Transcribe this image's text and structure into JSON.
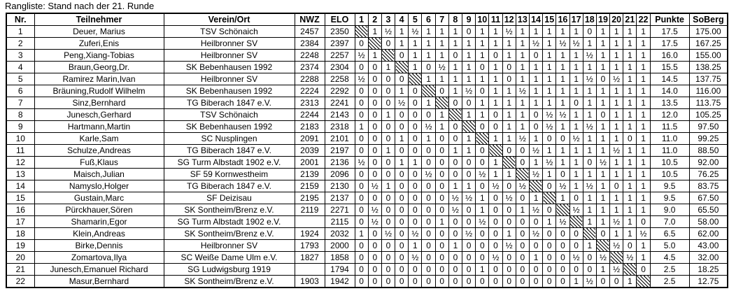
{
  "title": "Rangliste: Stand nach der 21. Runde",
  "table": {
    "headers": {
      "nr": "Nr.",
      "name": "Teilnehmer",
      "club": "Verein/Ort",
      "nwz": "NWZ",
      "elo": "ELO",
      "rounds": [
        "1",
        "2",
        "3",
        "4",
        "5",
        "6",
        "7",
        "8",
        "9",
        "10",
        "11",
        "12",
        "13",
        "14",
        "15",
        "16",
        "17",
        "18",
        "19",
        "20",
        "21",
        "22"
      ],
      "points": "Punkte",
      "soberg": "SoBerg"
    },
    "diagonal_marker": "X",
    "rows": [
      {
        "nr": "1",
        "name": "Deuer, Marius",
        "club": "TSV Schönaich",
        "nwz": "2457",
        "elo": "2350",
        "results": [
          "X",
          "1",
          "½",
          "1",
          "½",
          "1",
          "1",
          "1",
          "0",
          "1",
          "1",
          "½",
          "1",
          "1",
          "1",
          "1",
          "1",
          "0",
          "1",
          "1",
          "1",
          "1"
        ],
        "points": "17.5",
        "soberg": "175.00"
      },
      {
        "nr": "2",
        "name": "Zuferi,Enis",
        "club": "Heilbronner SV",
        "nwz": "2384",
        "elo": "2397",
        "results": [
          "0",
          "X",
          "0",
          "1",
          "1",
          "1",
          "1",
          "1",
          "1",
          "1",
          "1",
          "1",
          "1",
          "½",
          "1",
          "½",
          "½",
          "1",
          "1",
          "1",
          "1",
          "1"
        ],
        "points": "17.5",
        "soberg": "167.25"
      },
      {
        "nr": "3",
        "name": "Peng,Xiang-Tobias",
        "club": "Heilbronner SV",
        "nwz": "2248",
        "elo": "2257",
        "results": [
          "½",
          "1",
          "X",
          "0",
          "1",
          "1",
          "1",
          "0",
          "1",
          "1",
          "0",
          "1",
          "1",
          "0",
          "1",
          "1",
          "1",
          "½",
          "1",
          "1",
          "1",
          "1"
        ],
        "points": "16.0",
        "soberg": "155.00"
      },
      {
        "nr": "4",
        "name": "Braun,Georg,Dr.",
        "club": "SK Bebenhausen 1992",
        "nwz": "2374",
        "elo": "2304",
        "results": [
          "0",
          "0",
          "1",
          "X",
          "1",
          "0",
          "½",
          "1",
          "1",
          "0",
          "1",
          "0",
          "1",
          "1",
          "1",
          "1",
          "1",
          "1",
          "1",
          "1",
          "1",
          "1"
        ],
        "points": "15.5",
        "soberg": "138.25"
      },
      {
        "nr": "5",
        "name": "Ramirez Marin,Ivan",
        "club": "Heilbronner SV",
        "nwz": "2288",
        "elo": "2258",
        "results": [
          "½",
          "0",
          "0",
          "0",
          "X",
          "1",
          "1",
          "1",
          "1",
          "1",
          "1",
          "0",
          "1",
          "1",
          "1",
          "1",
          "1",
          "½",
          "0",
          "½",
          "1",
          "1"
        ],
        "points": "14.5",
        "soberg": "137.75"
      },
      {
        "nr": "6",
        "name": "Bräuning,Rudolf Wilhelm",
        "club": "SK Bebenhausen 1992",
        "nwz": "2224",
        "elo": "2292",
        "results": [
          "0",
          "0",
          "0",
          "1",
          "0",
          "X",
          "0",
          "1",
          "½",
          "0",
          "1",
          "1",
          "½",
          "1",
          "1",
          "1",
          "1",
          "1",
          "1",
          "1",
          "1",
          "1"
        ],
        "points": "14.0",
        "soberg": "116.00"
      },
      {
        "nr": "7",
        "name": "Sinz,Bernhard",
        "club": "TG Biberach 1847 e.V.",
        "nwz": "2313",
        "elo": "2241",
        "results": [
          "0",
          "0",
          "0",
          "½",
          "0",
          "1",
          "X",
          "0",
          "0",
          "1",
          "1",
          "1",
          "1",
          "1",
          "1",
          "1",
          "0",
          "1",
          "1",
          "1",
          "1",
          "1"
        ],
        "points": "13.5",
        "soberg": "113.75"
      },
      {
        "nr": "8",
        "name": "Junesch,Gerhard",
        "club": "TSV Schönaich",
        "nwz": "2244",
        "elo": "2143",
        "results": [
          "0",
          "0",
          "1",
          "0",
          "0",
          "0",
          "1",
          "X",
          "1",
          "1",
          "0",
          "1",
          "1",
          "0",
          "½",
          "½",
          "1",
          "1",
          "0",
          "1",
          "1",
          "1"
        ],
        "points": "12.0",
        "soberg": "105.25"
      },
      {
        "nr": "9",
        "name": "Hartmann,Martin",
        "club": "SK Bebenhausen 1992",
        "nwz": "2183",
        "elo": "2318",
        "results": [
          "1",
          "0",
          "0",
          "0",
          "0",
          "½",
          "1",
          "0",
          "X",
          "0",
          "0",
          "1",
          "1",
          "0",
          "½",
          "1",
          "1",
          "½",
          "1",
          "1",
          "1",
          "1"
        ],
        "points": "11.5",
        "soberg": "97.50"
      },
      {
        "nr": "10",
        "name": "Karle,Sam",
        "club": "SC Nusplingen",
        "nwz": "2091",
        "elo": "2101",
        "results": [
          "0",
          "0",
          "0",
          "1",
          "0",
          "1",
          "0",
          "0",
          "1",
          "X",
          "1",
          "1",
          "½",
          "1",
          "0",
          "0",
          "½",
          "1",
          "1",
          "1",
          "0",
          "1"
        ],
        "points": "11.0",
        "soberg": "99.25"
      },
      {
        "nr": "11",
        "name": "Schulze,Andreas",
        "club": "TG Biberach 1847 e.V.",
        "nwz": "2039",
        "elo": "2197",
        "results": [
          "0",
          "0",
          "1",
          "0",
          "0",
          "0",
          "0",
          "1",
          "1",
          "0",
          "X",
          "0",
          "0",
          "½",
          "1",
          "1",
          "1",
          "1",
          "1",
          "½",
          "1",
          "1"
        ],
        "points": "11.0",
        "soberg": "88.50"
      },
      {
        "nr": "12",
        "name": "Fuß,Klaus",
        "club": "SG Turm Albstadt 1902 e.V.",
        "nwz": "2001",
        "elo": "2136",
        "results": [
          "½",
          "0",
          "0",
          "1",
          "1",
          "0",
          "0",
          "0",
          "0",
          "0",
          "1",
          "X",
          "0",
          "1",
          "½",
          "1",
          "1",
          "0",
          "½",
          "1",
          "1",
          "1"
        ],
        "points": "10.5",
        "soberg": "92.00"
      },
      {
        "nr": "13",
        "name": "Maisch,Julian",
        "club": "SF 59 Kornwestheim",
        "nwz": "2139",
        "elo": "2096",
        "results": [
          "0",
          "0",
          "0",
          "0",
          "0",
          "½",
          "0",
          "0",
          "0",
          "½",
          "1",
          "1",
          "X",
          "½",
          "1",
          "0",
          "1",
          "1",
          "1",
          "1",
          "1",
          "1"
        ],
        "points": "10.5",
        "soberg": "76.25"
      },
      {
        "nr": "14",
        "name": "Namyslo,Holger",
        "club": "TG Biberach 1847 e.V.",
        "nwz": "2159",
        "elo": "2130",
        "results": [
          "0",
          "½",
          "1",
          "0",
          "0",
          "0",
          "0",
          "1",
          "1",
          "0",
          "½",
          "0",
          "½",
          "X",
          "0",
          "½",
          "1",
          "½",
          "1",
          "0",
          "1",
          "1"
        ],
        "points": "9.5",
        "soberg": "83.75"
      },
      {
        "nr": "15",
        "name": "Gustain,Marc",
        "club": "SF Deizisau",
        "nwz": "2195",
        "elo": "2137",
        "results": [
          "0",
          "0",
          "0",
          "0",
          "0",
          "0",
          "0",
          "½",
          "½",
          "1",
          "0",
          "½",
          "0",
          "1",
          "X",
          "1",
          "0",
          "1",
          "1",
          "1",
          "1",
          "1"
        ],
        "points": "9.5",
        "soberg": "67.50"
      },
      {
        "nr": "16",
        "name": "Pürckhauer,Sören",
        "club": "SK Sontheim/Brenz e.V.",
        "nwz": "2119",
        "elo": "2271",
        "results": [
          "0",
          "½",
          "0",
          "0",
          "0",
          "0",
          "0",
          "½",
          "0",
          "1",
          "0",
          "0",
          "1",
          "½",
          "0",
          "X",
          "½",
          "1",
          "1",
          "1",
          "1",
          "1"
        ],
        "points": "9.0",
        "soberg": "65.50"
      },
      {
        "nr": "17",
        "name": "Shamarin,Egor",
        "club": "SG Turm Albstadt 1902 e.V.",
        "nwz": "",
        "elo": "2115",
        "results": [
          "0",
          "½",
          "0",
          "0",
          "0",
          "0",
          "1",
          "0",
          "0",
          "½",
          "0",
          "0",
          "0",
          "0",
          "1",
          "½",
          "X",
          "1",
          "1",
          "½",
          "1",
          "0"
        ],
        "points": "7.0",
        "soberg": "58.00"
      },
      {
        "nr": "18",
        "name": "Klein,Andreas",
        "club": "SK Sontheim/Brenz e.V.",
        "nwz": "1924",
        "elo": "2032",
        "results": [
          "1",
          "0",
          "½",
          "0",
          "½",
          "0",
          "0",
          "0",
          "½",
          "0",
          "0",
          "1",
          "0",
          "½",
          "0",
          "0",
          "0",
          "X",
          "0",
          "1",
          "1",
          "½"
        ],
        "points": "6.5",
        "soberg": "62.00"
      },
      {
        "nr": "19",
        "name": "Birke,Dennis",
        "club": "Heilbronner SV",
        "nwz": "1793",
        "elo": "2000",
        "results": [
          "0",
          "0",
          "0",
          "0",
          "1",
          "0",
          "0",
          "1",
          "0",
          "0",
          "0",
          "½",
          "0",
          "0",
          "0",
          "0",
          "0",
          "1",
          "X",
          "½",
          "0",
          "1"
        ],
        "points": "5.0",
        "soberg": "43.00"
      },
      {
        "nr": "20",
        "name": "Zomartova,Ilya",
        "club": "SC Weiße Dame Ulm e.V.",
        "nwz": "1827",
        "elo": "1858",
        "results": [
          "0",
          "0",
          "0",
          "0",
          "½",
          "0",
          "0",
          "0",
          "0",
          "0",
          "½",
          "0",
          "0",
          "1",
          "0",
          "0",
          "½",
          "0",
          "½",
          "X",
          "½",
          "1"
        ],
        "points": "4.5",
        "soberg": "32.00"
      },
      {
        "nr": "21",
        "name": "Junesch,Emanuel Richard",
        "club": "SG Ludwigsburg 1919",
        "nwz": "",
        "elo": "1794",
        "results": [
          "0",
          "0",
          "0",
          "0",
          "0",
          "0",
          "0",
          "0",
          "0",
          "1",
          "0",
          "0",
          "0",
          "0",
          "0",
          "0",
          "0",
          "0",
          "1",
          "½",
          "X",
          "0"
        ],
        "points": "2.5",
        "soberg": "18.25"
      },
      {
        "nr": "22",
        "name": "Masur,Bernhard",
        "club": "SK Sontheim/Brenz e.V.",
        "nwz": "1903",
        "elo": "1942",
        "results": [
          "0",
          "0",
          "0",
          "0",
          "0",
          "0",
          "0",
          "0",
          "0",
          "0",
          "0",
          "0",
          "0",
          "0",
          "0",
          "0",
          "1",
          "½",
          "0",
          "0",
          "1",
          "X"
        ],
        "points": "2.5",
        "soberg": "12.75"
      }
    ]
  }
}
